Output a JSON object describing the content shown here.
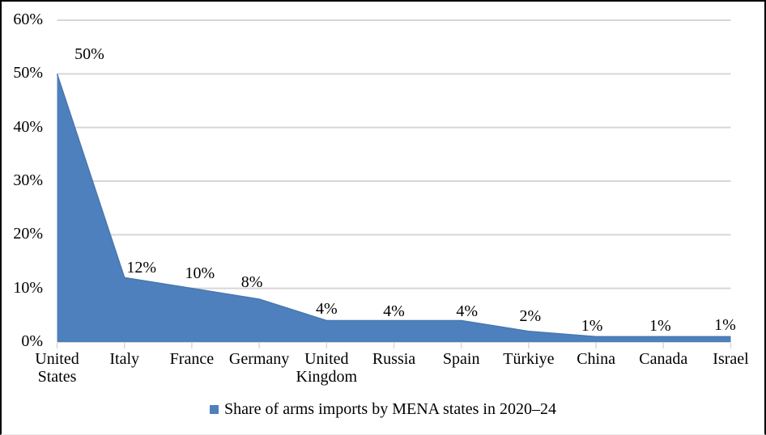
{
  "frame": {
    "background": "#ffffff",
    "border_color": "#000000"
  },
  "chart_data": {
    "type": "area",
    "title": "",
    "xlabel": "",
    "ylabel": "",
    "categories": [
      "United States",
      "Italy",
      "France",
      "Germany",
      "United Kingdom",
      "Russia",
      "Spain",
      "Türkiye",
      "China",
      "Canada",
      "Israel"
    ],
    "values": [
      50,
      12,
      10,
      8,
      4,
      4,
      4,
      2,
      1,
      1,
      1
    ],
    "data_labels": [
      "50%",
      "12%",
      "10%",
      "8%",
      "4%",
      "4%",
      "4%",
      "2%",
      "1%",
      "1%",
      "1%"
    ],
    "y_tick_labels": [
      "0%",
      "10%",
      "20%",
      "30%",
      "40%",
      "50%",
      "60%"
    ],
    "ylim": [
      0,
      60
    ],
    "y_step": 10,
    "grid": true,
    "legend_position": "bottom",
    "series_color": "#4D80BD",
    "series_edge_color": "#4878B0",
    "gridline_color": "#d6d6d6",
    "axis_tick_color": "#d9d9d9",
    "label_dx": [
      40,
      21,
      10,
      -9,
      0,
      0,
      7,
      2,
      -5,
      -4,
      -7
    ],
    "label_dy": [
      18,
      6,
      13,
      15,
      8,
      5,
      5,
      13,
      7,
      7,
      8
    ],
    "legend": {
      "label": "Share of arms imports by MENA states in 2020–24",
      "marker_color": "#4D80BD"
    }
  }
}
